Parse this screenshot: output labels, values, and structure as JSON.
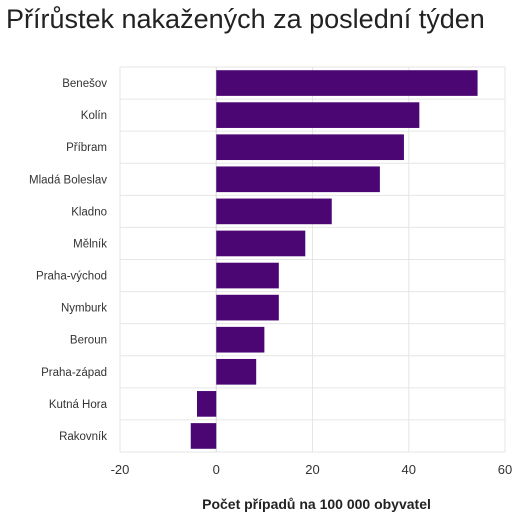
{
  "chart_data": {
    "type": "bar",
    "orientation": "horizontal",
    "title": "Přírůstek nakažených za poslední týden",
    "xlabel": "Počet případů na 100 000 obyvatel",
    "ylabel": "",
    "categories": [
      "Benešov",
      "Kolín",
      "Příbram",
      "Mladá Boleslav",
      "Kladno",
      "Mělník",
      "Praha-východ",
      "Nymburk",
      "Beroun",
      "Praha-západ",
      "Kutná Hora",
      "Rakovník"
    ],
    "values": [
      54.3,
      42.2,
      39.0,
      34.0,
      24.0,
      18.5,
      13.0,
      13.0,
      10.0,
      8.3,
      -4.0,
      -5.3
    ],
    "xlim": [
      -20,
      60
    ],
    "xticks": [
      "-20",
      "0",
      "20",
      "40",
      "60"
    ],
    "grid": true,
    "legend": "none",
    "bar_color": "#4b0673"
  }
}
